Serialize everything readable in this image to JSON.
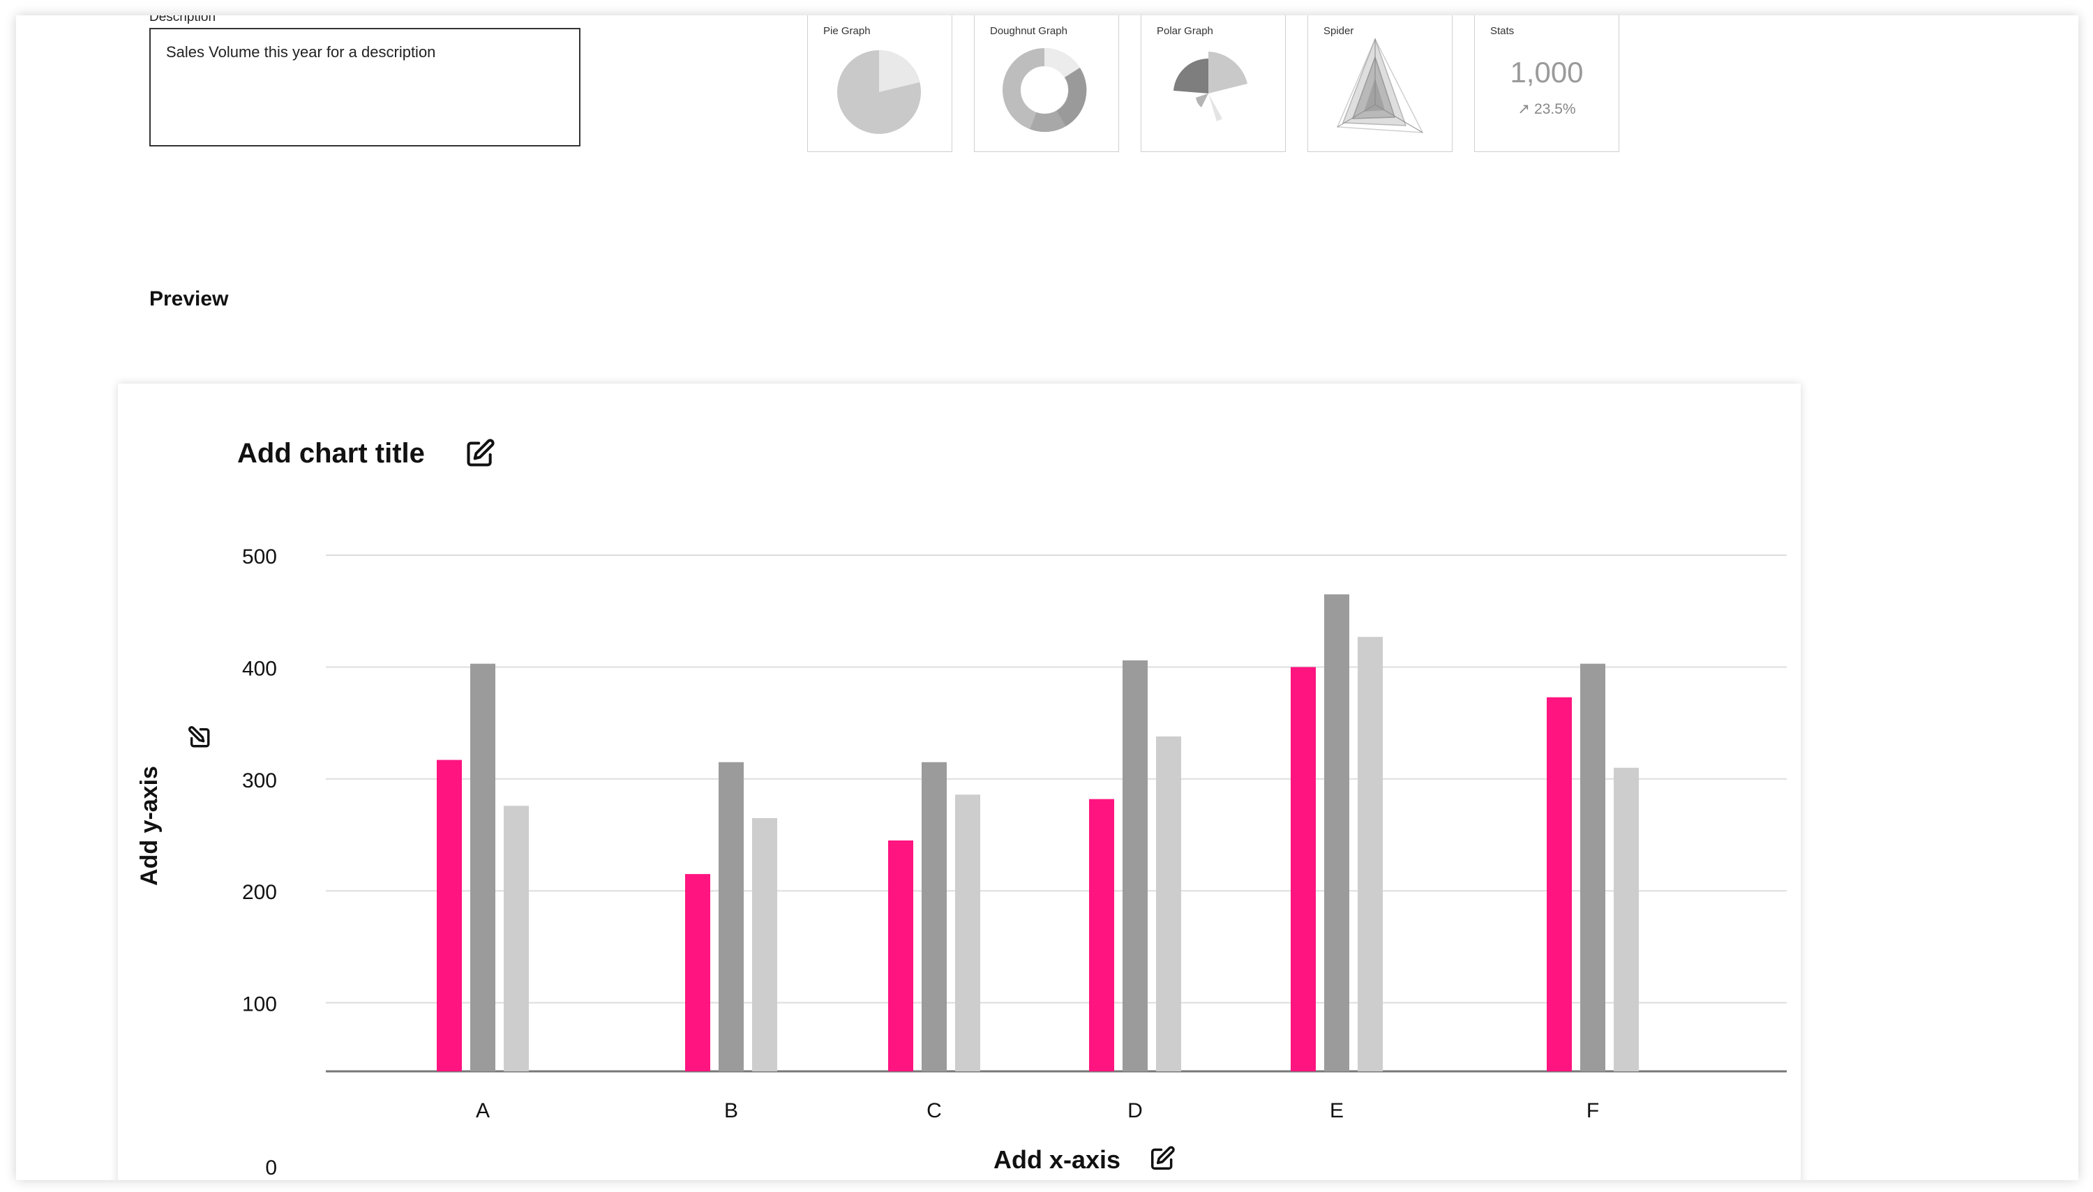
{
  "description": {
    "label": "Description",
    "value": "Sales Volume this year for a description"
  },
  "chart_types": [
    {
      "label": "Pie Graph",
      "icon": "pie-chart-icon"
    },
    {
      "label": "Doughnut Graph",
      "icon": "doughnut-chart-icon"
    },
    {
      "label": "Polar Graph",
      "icon": "polar-chart-icon"
    },
    {
      "label": "Spider",
      "icon": "radar-chart-icon"
    },
    {
      "label": "Stats",
      "icon": "stats-icon",
      "value": "1,000",
      "delta": "23.5%"
    }
  ],
  "preview": {
    "heading": "Preview"
  },
  "editor": {
    "chart_title": "Add chart title",
    "y_axis_title": "Add y-axis",
    "x_axis_title": "Add x-axis",
    "edit_icon": "edit-icon"
  },
  "colors": {
    "series_1": "#ff1480",
    "series_2": "#9b9b9b",
    "series_3": "#cdcdcd"
  },
  "chart_data": {
    "type": "bar",
    "categories": [
      "A",
      "B",
      "C",
      "D",
      "E",
      "F"
    ],
    "series": [
      {
        "values": [
          317,
          215,
          245,
          282,
          400,
          373
        ]
      },
      {
        "values": [
          403,
          315,
          315,
          406,
          465,
          403
        ]
      },
      {
        "values": [
          276,
          265,
          286,
          338,
          427,
          310
        ]
      }
    ],
    "yticks": [
      0,
      100,
      200,
      300,
      400,
      500
    ],
    "ylim": [
      0,
      500
    ],
    "grid": true,
    "legend": "none"
  }
}
